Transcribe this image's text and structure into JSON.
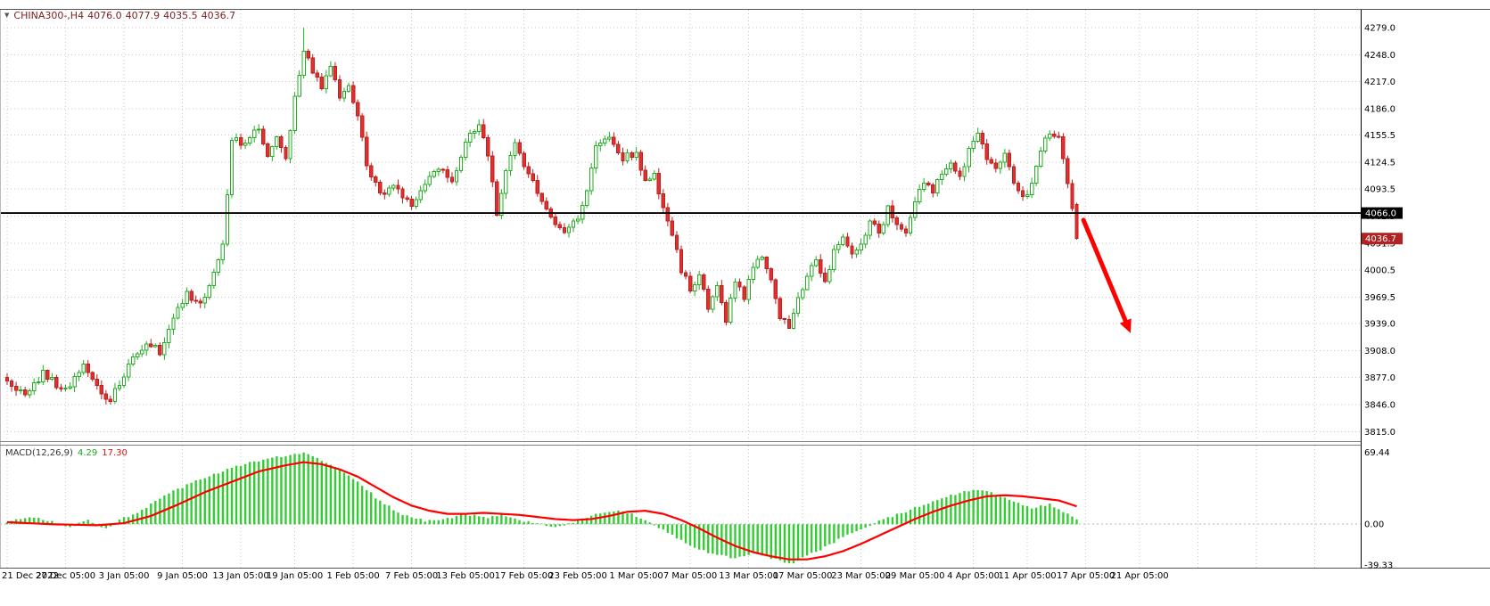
{
  "header": {
    "symbol_period": "CHINA300-,H4",
    "open": "4076.0",
    "high": "4077.9",
    "low": "4035.5",
    "close": "4036.7"
  },
  "colors": {
    "header_text": "#7b1f1f",
    "axis_text": "#000000",
    "grid": "#c9c9c9",
    "bull_fill": "#ffffff",
    "bull_stroke": "#22ad22",
    "bear_fill": "#e03131",
    "bear_stroke": "#c01f1f",
    "hline": "#000000",
    "hline_box_bg": "#000000",
    "bid_box_bg": "#b22222",
    "box_text": "#ffffff",
    "macd_hist": "#32cd32",
    "macd_signal": "#ff0000",
    "arrow": "#ff0000",
    "border": "#555555"
  },
  "chart_data": {
    "type": "candlestick+macd-histogram",
    "title": "CHINA300-,H4",
    "main": {
      "ylim": [
        3804,
        4299.5
      ],
      "price_gridlines": [
        "4279.0",
        "4248.0",
        "4217.0",
        "4186.0",
        "4155.5",
        "4124.5",
        "4093.5",
        "4062.5",
        "4031.5",
        "4000.5",
        "3969.5",
        "3939.0",
        "3908.0",
        "3877.0",
        "3846.0",
        "3815.0"
      ],
      "hline": {
        "price": 4066.0,
        "label": "4066.0"
      },
      "bid": {
        "price": 4036.7,
        "label": "4036.7"
      },
      "num_candles": 239,
      "close_waypoints": [
        [
          0,
          3872
        ],
        [
          4,
          3858
        ],
        [
          8,
          3882
        ],
        [
          13,
          3862
        ],
        [
          17,
          3890
        ],
        [
          20,
          3868
        ],
        [
          23,
          3850
        ],
        [
          27,
          3892
        ],
        [
          31,
          3918
        ],
        [
          34,
          3906
        ],
        [
          37,
          3944
        ],
        [
          40,
          3972
        ],
        [
          43,
          3960
        ],
        [
          46,
          3996
        ],
        [
          48,
          4030
        ],
        [
          50,
          4152
        ],
        [
          53,
          4144
        ],
        [
          56,
          4166
        ],
        [
          58,
          4132
        ],
        [
          60,
          4152
        ],
        [
          62,
          4124
        ],
        [
          64,
          4196
        ],
        [
          66,
          4252
        ],
        [
          68,
          4228
        ],
        [
          70,
          4210
        ],
        [
          72,
          4236
        ],
        [
          74,
          4196
        ],
        [
          76,
          4214
        ],
        [
          78,
          4178
        ],
        [
          80,
          4120
        ],
        [
          83,
          4086
        ],
        [
          86,
          4102
        ],
        [
          90,
          4070
        ],
        [
          93,
          4096
        ],
        [
          96,
          4120
        ],
        [
          99,
          4100
        ],
        [
          102,
          4148
        ],
        [
          105,
          4168
        ],
        [
          107,
          4130
        ],
        [
          109,
          4066
        ],
        [
          111,
          4114
        ],
        [
          113,
          4150
        ],
        [
          115,
          4118
        ],
        [
          118,
          4090
        ],
        [
          121,
          4060
        ],
        [
          124,
          4042
        ],
        [
          127,
          4062
        ],
        [
          129,
          4090
        ],
        [
          131,
          4140
        ],
        [
          134,
          4156
        ],
        [
          137,
          4130
        ],
        [
          140,
          4136
        ],
        [
          142,
          4100
        ],
        [
          144,
          4114
        ],
        [
          146,
          4070
        ],
        [
          148,
          4040
        ],
        [
          150,
          4002
        ],
        [
          152,
          3976
        ],
        [
          154,
          3996
        ],
        [
          156,
          3960
        ],
        [
          158,
          3980
        ],
        [
          160,
          3944
        ],
        [
          162,
          3984
        ],
        [
          164,
          3970
        ],
        [
          166,
          4005
        ],
        [
          168,
          4016
        ],
        [
          170,
          3988
        ],
        [
          172,
          3948
        ],
        [
          174,
          3936
        ],
        [
          176,
          3966
        ],
        [
          178,
          3992
        ],
        [
          180,
          4010
        ],
        [
          182,
          3986
        ],
        [
          184,
          4022
        ],
        [
          186,
          4040
        ],
        [
          188,
          4016
        ],
        [
          190,
          4032
        ],
        [
          192,
          4058
        ],
        [
          194,
          4040
        ],
        [
          196,
          4070
        ],
        [
          198,
          4054
        ],
        [
          200,
          4042
        ],
        [
          202,
          4080
        ],
        [
          204,
          4100
        ],
        [
          206,
          4090
        ],
        [
          208,
          4112
        ],
        [
          210,
          4126
        ],
        [
          212,
          4106
        ],
        [
          214,
          4140
        ],
        [
          216,
          4154
        ],
        [
          218,
          4130
        ],
        [
          220,
          4116
        ],
        [
          222,
          4136
        ],
        [
          224,
          4100
        ],
        [
          226,
          4082
        ],
        [
          228,
          4096
        ],
        [
          230,
          4136
        ],
        [
          232,
          4160
        ],
        [
          234,
          4150
        ],
        [
          235,
          4126
        ],
        [
          236,
          4096
        ],
        [
          237,
          4072
        ],
        [
          238,
          4036.7
        ]
      ],
      "candle_overrides": [
        {
          "i": 238,
          "open": 4076.0,
          "high": 4077.9,
          "low": 4035.5,
          "close": 4036.7
        },
        {
          "i": 66,
          "high": 4279.0
        },
        {
          "i": 23,
          "low": 3846.0
        },
        {
          "i": 174,
          "low": 3933.0
        }
      ],
      "arrow": {
        "from_index": 239.5,
        "from_price": 4058,
        "to_index": 250,
        "to_price": 3928
      }
    },
    "time_axis": {
      "ticks": [
        {
          "index": 0,
          "label": "21 Dec 2022"
        },
        {
          "index": 13,
          "label": "27 Dec 05:00"
        },
        {
          "index": 26,
          "label": "3 Jan 05:00"
        },
        {
          "index": 39,
          "label": "9 Jan 05:00"
        },
        {
          "index": 52,
          "label": "13 Jan 05:00"
        },
        {
          "index": 64,
          "label": "19 Jan 05:00"
        },
        {
          "index": 77,
          "label": "1 Feb 05:00"
        },
        {
          "index": 90,
          "label": "7 Feb 05:00"
        },
        {
          "index": 102,
          "label": "13 Feb 05:00"
        },
        {
          "index": 115,
          "label": "17 Feb 05:00"
        },
        {
          "index": 127,
          "label": "23 Feb 05:00"
        },
        {
          "index": 140,
          "label": "1 Mar 05:00"
        },
        {
          "index": 152,
          "label": "7 Mar 05:00"
        },
        {
          "index": 165,
          "label": "13 Mar 05:00"
        },
        {
          "index": 177,
          "label": "17 Mar 05:00"
        },
        {
          "index": 190,
          "label": "23 Mar 05:00"
        },
        {
          "index": 202,
          "label": "29 Mar 05:00"
        },
        {
          "index": 215,
          "label": "4 Apr 05:00"
        },
        {
          "index": 227,
          "label": "11 Apr 05:00"
        },
        {
          "index": 240,
          "label": "17 Apr 05:00"
        },
        {
          "index": 252,
          "label": "21 Apr 05:00"
        }
      ],
      "future_grid_indices": [
        265,
        278,
        291
      ]
    },
    "macd": {
      "label": "MACD(12,26,9)",
      "value_main": "4.29",
      "value_signal": "17.30",
      "ylim": [
        -42,
        76
      ],
      "axis_labels": [
        "69.44",
        "0.00",
        "-39.33"
      ],
      "axis_values": [
        69.44,
        0,
        -39.33
      ],
      "histogram_waypoints": [
        [
          0,
          3
        ],
        [
          6,
          6
        ],
        [
          10,
          2
        ],
        [
          14,
          -3
        ],
        [
          18,
          4
        ],
        [
          22,
          -5
        ],
        [
          26,
          6
        ],
        [
          30,
          14
        ],
        [
          34,
          24
        ],
        [
          38,
          34
        ],
        [
          42,
          42
        ],
        [
          46,
          48
        ],
        [
          50,
          54
        ],
        [
          54,
          60
        ],
        [
          58,
          63
        ],
        [
          62,
          66
        ],
        [
          66,
          69
        ],
        [
          70,
          62
        ],
        [
          74,
          52
        ],
        [
          78,
          42
        ],
        [
          82,
          26
        ],
        [
          86,
          14
        ],
        [
          90,
          6
        ],
        [
          94,
          3
        ],
        [
          98,
          6
        ],
        [
          102,
          10
        ],
        [
          106,
          6
        ],
        [
          110,
          9
        ],
        [
          114,
          4
        ],
        [
          118,
          1
        ],
        [
          122,
          -4
        ],
        [
          126,
          2
        ],
        [
          130,
          8
        ],
        [
          134,
          13
        ],
        [
          138,
          11
        ],
        [
          142,
          4
        ],
        [
          146,
          -6
        ],
        [
          150,
          -16
        ],
        [
          154,
          -24
        ],
        [
          158,
          -30
        ],
        [
          162,
          -33
        ],
        [
          166,
          -28
        ],
        [
          170,
          -33
        ],
        [
          174,
          -39
        ],
        [
          178,
          -31
        ],
        [
          182,
          -22
        ],
        [
          186,
          -13
        ],
        [
          190,
          -5
        ],
        [
          194,
          3
        ],
        [
          198,
          9
        ],
        [
          202,
          16
        ],
        [
          206,
          22
        ],
        [
          210,
          28
        ],
        [
          214,
          32
        ],
        [
          217,
          33
        ],
        [
          220,
          29
        ],
        [
          224,
          21
        ],
        [
          228,
          15
        ],
        [
          232,
          19
        ],
        [
          235,
          12
        ],
        [
          238,
          4.29
        ]
      ],
      "signal_waypoints": [
        [
          0,
          2
        ],
        [
          10,
          0
        ],
        [
          20,
          -1
        ],
        [
          26,
          1
        ],
        [
          32,
          8
        ],
        [
          38,
          19
        ],
        [
          44,
          31
        ],
        [
          50,
          41
        ],
        [
          56,
          51
        ],
        [
          62,
          57
        ],
        [
          66,
          60
        ],
        [
          70,
          58
        ],
        [
          74,
          53
        ],
        [
          78,
          46
        ],
        [
          82,
          36
        ],
        [
          86,
          26
        ],
        [
          90,
          18
        ],
        [
          94,
          13
        ],
        [
          98,
          10
        ],
        [
          102,
          10
        ],
        [
          106,
          11
        ],
        [
          110,
          10
        ],
        [
          114,
          9
        ],
        [
          118,
          7
        ],
        [
          122,
          5
        ],
        [
          126,
          4
        ],
        [
          130,
          5
        ],
        [
          134,
          8
        ],
        [
          138,
          12
        ],
        [
          142,
          13
        ],
        [
          146,
          10
        ],
        [
          150,
          4
        ],
        [
          154,
          -4
        ],
        [
          158,
          -13
        ],
        [
          162,
          -21
        ],
        [
          166,
          -27
        ],
        [
          170,
          -31
        ],
        [
          174,
          -34
        ],
        [
          178,
          -34
        ],
        [
          182,
          -31
        ],
        [
          186,
          -26
        ],
        [
          190,
          -19
        ],
        [
          194,
          -11
        ],
        [
          198,
          -3
        ],
        [
          202,
          5
        ],
        [
          206,
          12
        ],
        [
          210,
          18
        ],
        [
          214,
          23
        ],
        [
          218,
          27
        ],
        [
          222,
          28
        ],
        [
          226,
          27
        ],
        [
          230,
          25
        ],
        [
          234,
          23
        ],
        [
          238,
          17.3
        ]
      ]
    }
  }
}
